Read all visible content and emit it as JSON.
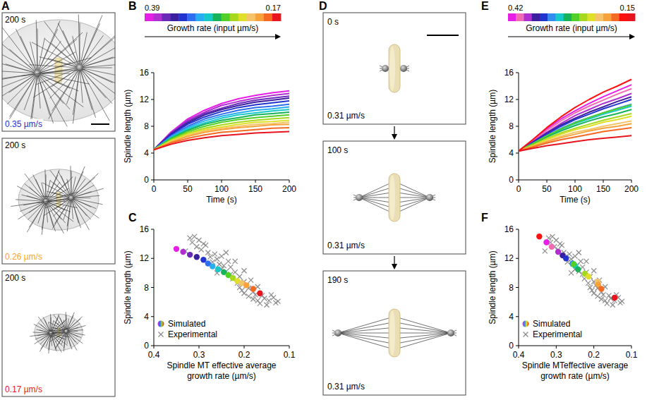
{
  "panel_A": {
    "label": "A",
    "frames": [
      {
        "time": "200 s",
        "rate": "0.35 µm/s",
        "color": "#2233d0"
      },
      {
        "time": "200 s",
        "rate": "0.26 µm/s",
        "color": "#f7a23a"
      },
      {
        "time": "200 s",
        "rate": "0.17 µm/s",
        "color": "#e8141e"
      }
    ]
  },
  "panel_D": {
    "label": "D",
    "frames": [
      {
        "time": "0 s",
        "rate": "0.31 µm/s"
      },
      {
        "time": "100 s",
        "rate": "0.31 µm/s"
      },
      {
        "time": "190 s",
        "rate": "0.31 µm/s"
      }
    ]
  },
  "chart_data": [
    {
      "panel": "B",
      "type": "line",
      "x_label": "Time (s)",
      "y_label": "Spindle length (µm)",
      "x": [
        0,
        25,
        50,
        75,
        100,
        125,
        150,
        175,
        200
      ],
      "xlim": [
        0,
        200
      ],
      "xticks": [
        0,
        50,
        100,
        150,
        200
      ],
      "ylim": [
        0,
        16
      ],
      "yticks": [
        0,
        4,
        8,
        12,
        16
      ],
      "colorbar": {
        "label": "Growth rate (input µm/s)",
        "range": [
          0.39,
          0.17
        ],
        "ticks": [
          0.39,
          0.17
        ]
      },
      "series": [
        {
          "color": "#e61ee6",
          "values": [
            4.5,
            7.1,
            9.1,
            10.4,
            11.4,
            12.1,
            12.6,
            13.0,
            13.3
          ]
        },
        {
          "color": "#b02fd0",
          "values": [
            4.5,
            7.0,
            8.9,
            10.1,
            11.1,
            11.7,
            12.2,
            12.6,
            12.9
          ]
        },
        {
          "color": "#6a2ab8",
          "values": [
            4.5,
            6.9,
            8.7,
            9.9,
            10.7,
            11.4,
            11.9,
            12.2,
            12.5
          ]
        },
        {
          "color": "#3c1f9e",
          "values": [
            4.5,
            6.8,
            8.5,
            9.7,
            10.5,
            11.1,
            11.6,
            11.9,
            12.2
          ]
        },
        {
          "color": "#2233d0",
          "values": [
            4.5,
            6.7,
            8.3,
            9.4,
            10.2,
            10.8,
            11.2,
            11.5,
            11.8
          ]
        },
        {
          "color": "#2f6ef0",
          "values": [
            4.5,
            6.5,
            8.0,
            9.1,
            9.8,
            10.4,
            10.8,
            11.0,
            11.3
          ]
        },
        {
          "color": "#27aef0",
          "values": [
            4.5,
            6.4,
            7.8,
            8.8,
            9.5,
            10.0,
            10.4,
            10.6,
            10.9
          ]
        },
        {
          "color": "#17c9c9",
          "values": [
            4.5,
            6.3,
            7.6,
            8.5,
            9.2,
            9.7,
            10.0,
            10.3,
            10.5
          ]
        },
        {
          "color": "#16b35a",
          "values": [
            4.5,
            6.2,
            7.4,
            8.3,
            8.9,
            9.3,
            9.7,
            9.9,
            10.1
          ]
        },
        {
          "color": "#52d02a",
          "values": [
            4.5,
            6.1,
            7.2,
            8.0,
            8.6,
            9.0,
            9.3,
            9.5,
            9.7
          ]
        },
        {
          "color": "#a6d81e",
          "values": [
            4.5,
            5.9,
            7.0,
            7.7,
            8.2,
            8.6,
            8.9,
            9.1,
            9.3
          ]
        },
        {
          "color": "#e0e02a",
          "values": [
            4.5,
            5.8,
            6.8,
            7.5,
            7.9,
            8.3,
            8.6,
            8.7,
            8.9
          ]
        },
        {
          "color": "#f5c46a",
          "values": [
            4.5,
            5.7,
            6.6,
            7.3,
            7.7,
            8.0,
            8.3,
            8.4,
            8.6
          ]
        },
        {
          "color": "#f7a23a",
          "values": [
            4.5,
            5.6,
            6.5,
            7.1,
            7.5,
            7.8,
            8.0,
            8.2,
            8.3
          ]
        },
        {
          "color": "#f56a22",
          "values": [
            4.5,
            5.5,
            6.2,
            6.7,
            7.1,
            7.3,
            7.5,
            7.7,
            7.8
          ]
        },
        {
          "color": "#e8141e",
          "values": [
            4.5,
            5.3,
            5.9,
            6.3,
            6.6,
            6.8,
            7.0,
            7.1,
            7.2
          ]
        }
      ]
    },
    {
      "panel": "C",
      "type": "scatter",
      "x_label": "Spindle MT effective average growth rate (µm/s)",
      "y_label": "Spindle length (µm)",
      "xlim": [
        0.4,
        0.1
      ],
      "xticks": [
        0.4,
        0.3,
        0.2,
        0.1
      ],
      "ylim": [
        0,
        16
      ],
      "yticks": [
        0,
        4,
        8,
        12,
        16
      ],
      "legend": "bottom-left",
      "series": [
        {
          "name": "Simulated",
          "marker": "circle",
          "colors": [
            "#e61ee6",
            "#b02fd0",
            "#6a2ab8",
            "#3c1f9e",
            "#2233d0",
            "#2f6ef0",
            "#27aef0",
            "#17c9c9",
            "#16b35a",
            "#52d02a",
            "#a6d81e",
            "#e0e02a",
            "#f5c46a",
            "#f7a23a",
            "#f56a22",
            "#e8141e"
          ],
          "x": [
            0.35,
            0.335,
            0.32,
            0.305,
            0.29,
            0.28,
            0.27,
            0.258,
            0.245,
            0.235,
            0.225,
            0.215,
            0.205,
            0.195,
            0.18,
            0.165
          ],
          "values": [
            13.3,
            12.9,
            12.5,
            12.2,
            11.8,
            11.3,
            10.9,
            10.5,
            10.1,
            9.7,
            9.3,
            8.9,
            8.6,
            8.3,
            7.8,
            7.2
          ]
        },
        {
          "name": "Experimental",
          "marker": "x",
          "color": "#8c8c8c",
          "x": [
            0.32,
            0.31,
            0.315,
            0.3,
            0.305,
            0.29,
            0.295,
            0.28,
            0.285,
            0.275,
            0.27,
            0.265,
            0.26,
            0.255,
            0.25,
            0.25,
            0.245,
            0.24,
            0.235,
            0.23,
            0.23,
            0.225,
            0.22,
            0.215,
            0.21,
            0.21,
            0.205,
            0.2,
            0.2,
            0.195,
            0.19,
            0.19,
            0.185,
            0.18,
            0.18,
            0.175,
            0.17,
            0.17,
            0.165,
            0.16,
            0.155,
            0.15,
            0.145,
            0.14,
            0.135,
            0.13,
            0.125,
            0.33,
            0.26,
            0.22,
            0.24,
            0.2
          ],
          "values": [
            14.8,
            15.0,
            14.2,
            14.5,
            13.6,
            14.0,
            13.2,
            12.8,
            13.8,
            12.2,
            11.5,
            12.6,
            11.9,
            11.2,
            12.3,
            10.5,
            11.0,
            10.2,
            11.6,
            9.8,
            10.8,
            9.2,
            10.1,
            8.6,
            9.5,
            8.0,
            7.6,
            8.8,
            7.2,
            8.3,
            6.8,
            7.9,
            9.0,
            7.4,
            6.4,
            7.0,
            6.2,
            8.1,
            5.8,
            6.9,
            6.5,
            5.6,
            6.2,
            7.0,
            6.6,
            5.9,
            6.1,
            13.0,
            10.0,
            11.6,
            12.8,
            10.3
          ]
        }
      ]
    },
    {
      "panel": "E",
      "type": "line",
      "x_label": "Time (s)",
      "y_label": "Spindle length (µm)",
      "x": [
        0,
        25,
        50,
        75,
        100,
        125,
        150,
        175,
        200
      ],
      "xlim": [
        0,
        200
      ],
      "xticks": [
        0,
        50,
        100,
        150,
        200
      ],
      "ylim": [
        0,
        16
      ],
      "yticks": [
        0,
        4,
        8,
        12,
        16
      ],
      "colorbar": {
        "label": "Growth rate (input µm/s)",
        "range": [
          0.42,
          0.15
        ],
        "ticks": [
          0.42,
          0.15
        ]
      },
      "series": [
        {
          "color": "#e61ee6",
          "values": [
            4.3,
            5.9,
            7.6,
            9.1,
            10.3,
            11.4,
            12.4,
            13.3,
            14.2
          ]
        },
        {
          "color": "#f06ab4",
          "values": [
            4.3,
            5.8,
            7.4,
            8.8,
            10.0,
            11.0,
            11.9,
            12.8,
            13.6
          ]
        },
        {
          "color": "#b02fd0",
          "values": [
            4.3,
            5.7,
            7.1,
            8.4,
            9.6,
            10.5,
            11.4,
            12.1,
            12.9
          ]
        },
        {
          "color": "#3c1f9e",
          "values": [
            4.3,
            5.6,
            7.0,
            8.2,
            9.2,
            10.1,
            10.9,
            11.7,
            12.4
          ]
        },
        {
          "color": "#2233d0",
          "values": [
            4.3,
            5.5,
            6.8,
            8.0,
            9.0,
            9.8,
            10.6,
            11.3,
            12.0
          ]
        },
        {
          "color": "#2f8ef0",
          "values": [
            4.3,
            5.4,
            6.6,
            7.7,
            8.6,
            9.3,
            10.0,
            10.7,
            11.3
          ]
        },
        {
          "color": "#17c9c9",
          "values": [
            4.3,
            5.4,
            6.5,
            7.5,
            8.4,
            9.1,
            9.8,
            10.4,
            11.0
          ]
        },
        {
          "color": "#16b35a",
          "values": [
            4.3,
            5.3,
            6.4,
            7.3,
            8.1,
            8.8,
            9.4,
            9.9,
            10.5
          ]
        },
        {
          "color": "#52d02a",
          "values": [
            4.3,
            5.4,
            6.6,
            7.6,
            8.5,
            9.3,
            10.0,
            10.6,
            11.2
          ]
        },
        {
          "color": "#a6d81e",
          "values": [
            4.3,
            5.2,
            6.2,
            7.0,
            7.7,
            8.3,
            8.9,
            9.4,
            9.9
          ]
        },
        {
          "color": "#e0e02a",
          "values": [
            4.3,
            5.1,
            6.0,
            6.8,
            7.5,
            8.0,
            8.6,
            9.0,
            9.5
          ]
        },
        {
          "color": "#f5c46a",
          "values": [
            4.3,
            5.0,
            5.8,
            6.5,
            7.1,
            7.5,
            8.0,
            8.4,
            8.8
          ]
        },
        {
          "color": "#f7a23a",
          "values": [
            4.3,
            5.0,
            5.7,
            6.3,
            6.8,
            7.3,
            7.7,
            8.0,
            8.4
          ]
        },
        {
          "color": "#f56a22",
          "values": [
            4.3,
            4.9,
            5.5,
            6.0,
            6.4,
            6.8,
            7.2,
            7.5,
            7.8
          ]
        },
        {
          "color": "#ff1010",
          "values": [
            4.3,
            6.0,
            7.8,
            9.4,
            10.8,
            12.0,
            13.1,
            14.0,
            15.0
          ]
        },
        {
          "color": "#e8141e",
          "values": [
            4.3,
            4.7,
            5.1,
            5.4,
            5.7,
            6.0,
            6.2,
            6.4,
            6.6
          ]
        }
      ]
    },
    {
      "panel": "F",
      "type": "scatter",
      "x_label": "Spindle MTeffective average growth rate (µm/s)",
      "y_label": "Spindle length (µm)",
      "xlim": [
        0.4,
        0.1
      ],
      "xticks": [
        0.4,
        0.3,
        0.2,
        0.1
      ],
      "ylim": [
        0,
        16
      ],
      "yticks": [
        0,
        4,
        8,
        12,
        16
      ],
      "legend": "bottom-left",
      "series": [
        {
          "name": "Simulated",
          "marker": "circle",
          "colors": [
            "#e61ee6",
            "#f06ab4",
            "#b02fd0",
            "#3c1f9e",
            "#2233d0",
            "#2f8ef0",
            "#17c9c9",
            "#16b35a",
            "#52d02a",
            "#a6d81e",
            "#e0e02a",
            "#f5c46a",
            "#f7a23a",
            "#f56a22",
            "#ff1010",
            "#e8141e"
          ],
          "x": [
            0.326,
            0.312,
            0.295,
            0.283,
            0.274,
            0.257,
            0.25,
            0.242,
            0.254,
            0.224,
            0.214,
            0.19,
            0.188,
            0.18,
            0.345,
            0.145
          ],
          "values": [
            14.2,
            13.6,
            12.9,
            12.4,
            12.0,
            11.3,
            11.0,
            10.5,
            11.2,
            9.9,
            9.5,
            8.8,
            8.4,
            7.8,
            15.0,
            6.6
          ]
        },
        {
          "name": "Experimental",
          "marker": "x",
          "color": "#8c8c8c",
          "x": [
            0.32,
            0.31,
            0.315,
            0.3,
            0.305,
            0.29,
            0.295,
            0.28,
            0.285,
            0.275,
            0.27,
            0.265,
            0.26,
            0.255,
            0.25,
            0.25,
            0.245,
            0.24,
            0.235,
            0.23,
            0.23,
            0.225,
            0.22,
            0.215,
            0.21,
            0.21,
            0.205,
            0.2,
            0.2,
            0.195,
            0.19,
            0.19,
            0.185,
            0.18,
            0.18,
            0.175,
            0.17,
            0.17,
            0.165,
            0.16,
            0.155,
            0.15,
            0.145,
            0.14,
            0.135,
            0.13,
            0.125,
            0.33,
            0.26,
            0.22,
            0.24,
            0.2
          ],
          "values": [
            14.8,
            15.0,
            14.2,
            14.5,
            13.6,
            14.0,
            13.2,
            12.8,
            13.8,
            12.2,
            11.5,
            12.6,
            11.9,
            11.2,
            12.3,
            10.5,
            11.0,
            10.2,
            11.6,
            9.8,
            10.8,
            9.2,
            10.1,
            8.6,
            9.5,
            8.0,
            7.6,
            8.8,
            7.2,
            8.3,
            6.8,
            7.9,
            9.0,
            7.4,
            6.4,
            7.0,
            6.2,
            8.1,
            5.8,
            6.9,
            6.5,
            5.6,
            6.2,
            7.0,
            6.6,
            5.9,
            6.1,
            13.0,
            10.0,
            11.6,
            12.8,
            10.3
          ]
        }
      ]
    }
  ]
}
